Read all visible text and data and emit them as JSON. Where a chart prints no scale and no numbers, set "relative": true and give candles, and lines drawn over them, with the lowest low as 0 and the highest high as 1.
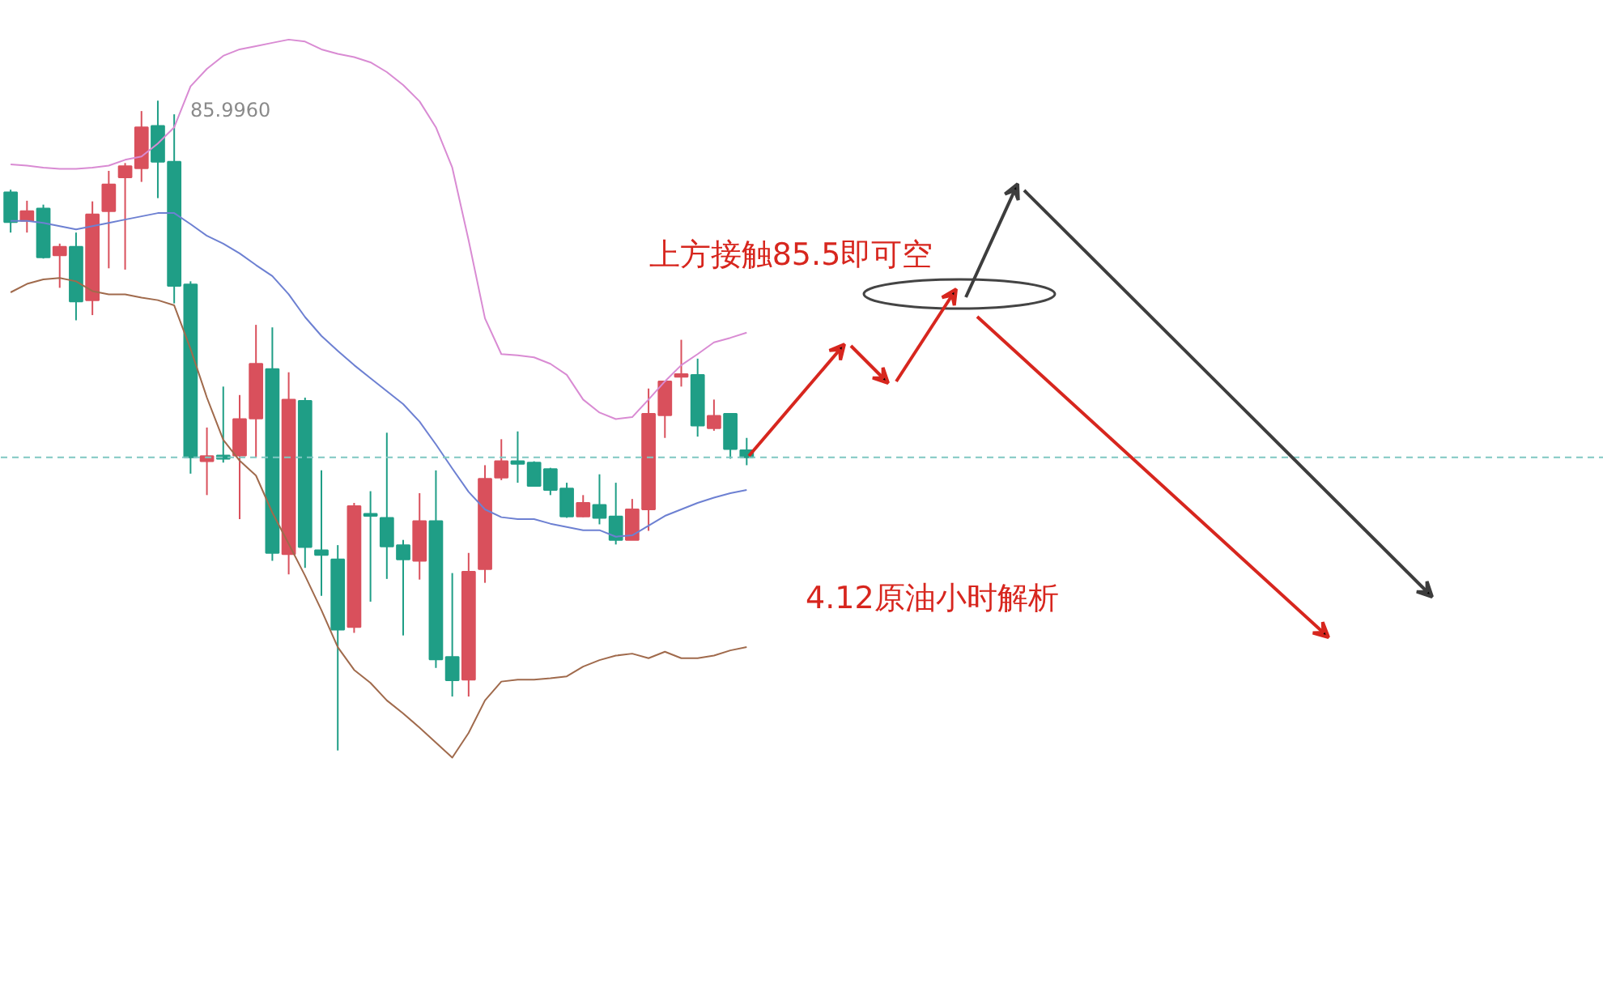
{
  "chart_data": {
    "type": "candlestick",
    "title": "4.12原油小时解析",
    "relative": true,
    "categories": [
      null,
      null,
      null,
      null,
      null,
      null,
      null,
      null,
      null,
      null,
      null,
      null,
      null,
      null,
      null,
      null,
      null,
      null,
      null,
      null,
      null,
      null,
      null,
      null,
      null,
      null,
      null,
      null,
      null,
      null,
      null,
      null,
      null,
      null,
      null,
      null,
      null,
      null,
      null,
      null,
      null,
      null,
      null,
      null,
      null,
      null,
      null,
      null,
      null,
      null,
      null,
      null,
      null,
      null,
      null,
      null,
      null,
      null,
      null,
      null,
      null,
      null,
      null,
      null,
      null,
      null,
      null,
      null,
      null,
      null,
      null,
      null,
      null,
      null,
      null,
      null,
      null,
      null,
      null,
      null,
      null,
      null,
      null,
      null,
      null,
      null,
      null,
      null,
      null,
      null,
      null,
      null,
      null,
      null,
      null,
      null,
      null,
      null
    ],
    "ohlc": [
      [
        0.859,
        0.863,
        0.797,
        0.813
      ],
      [
        0.815,
        0.846,
        0.797,
        0.83
      ],
      [
        0.834,
        0.84,
        0.757,
        0.759
      ],
      [
        0.762,
        0.78,
        0.712,
        0.775
      ],
      [
        0.775,
        0.797,
        0.662,
        0.691
      ],
      [
        0.693,
        0.845,
        0.67,
        0.825
      ],
      [
        0.83,
        0.892,
        0.742,
        0.871
      ],
      [
        0.882,
        0.904,
        0.74,
        0.899
      ],
      [
        0.896,
        0.984,
        0.875,
        0.959
      ],
      [
        0.961,
        1,
        0.85,
        0.906
      ],
      [
        0.906,
        0.979,
        0.688,
        0.715
      ],
      [
        0.717,
        0.722,
        0.426,
        0.451
      ],
      [
        0.445,
        0.497,
        0.393,
        0.453
      ],
      [
        0.454,
        0.56,
        0.443,
        0.449
      ],
      [
        0.454,
        0.547,
        0.356,
        0.51
      ],
      [
        0.511,
        0.655,
        0.451,
        0.595
      ],
      [
        0.587,
        0.651,
        0.292,
        0.304
      ],
      [
        0.302,
        0.582,
        0.271,
        0.54
      ],
      [
        0.538,
        0.543,
        0.281,
        0.313
      ],
      [
        0.308,
        0.431,
        0.238,
        0.301
      ],
      [
        0.294,
        0.316,
        0,
        0.186
      ],
      [
        0.19,
        0.381,
        0.181,
        0.376
      ],
      [
        0.364,
        0.399,
        0.229,
        0.361
      ],
      [
        0.358,
        0.489,
        0.264,
        0.314
      ],
      [
        0.316,
        0.324,
        0.177,
        0.294
      ],
      [
        0.292,
        0.396,
        0.263,
        0.353
      ],
      [
        0.353,
        0.431,
        0.127,
        0.14
      ],
      [
        0.144,
        0.273,
        0.083,
        0.108
      ],
      [
        0.109,
        0.304,
        0.083,
        0.275
      ],
      [
        0.279,
        0.439,
        0.258,
        0.418
      ],
      [
        0.42,
        0.479,
        0.416,
        0.445
      ],
      [
        0.445,
        0.491,
        0.412,
        0.441
      ],
      [
        0.443,
        0.445,
        0.406,
        0.407
      ],
      [
        0.433,
        0.435,
        0.393,
        0.401
      ],
      [
        0.403,
        0.412,
        0.358,
        0.36
      ],
      [
        0.36,
        0.393,
        0.359,
        0.381
      ],
      [
        0.378,
        0.425,
        0.348,
        0.358
      ],
      [
        0.36,
        0.412,
        0.317,
        0.324
      ],
      [
        0.324,
        0.387,
        0.324,
        0.371
      ],
      [
        0.371,
        0.557,
        0.338,
        0.518
      ],
      [
        0.516,
        0.568,
        0.481,
        0.568
      ],
      [
        0.575,
        0.632,
        0.56,
        0.579
      ],
      [
        0.578,
        0.603,
        0.483,
        0.5
      ],
      [
        0.496,
        0.54,
        0.492,
        0.515
      ],
      [
        0.518,
        0.518,
        0.449,
        0.464
      ],
      [
        0.462,
        0.481,
        0.439,
        0.451
      ],
      null,
      null,
      null,
      null,
      null,
      null,
      null,
      null,
      null,
      null,
      null,
      null,
      null,
      null,
      null,
      null,
      null,
      null,
      null,
      null,
      null,
      null,
      null,
      null,
      null,
      null,
      null,
      null,
      null,
      null,
      null,
      null,
      null,
      null,
      null,
      null,
      null,
      null,
      null,
      null,
      null,
      null,
      null,
      null,
      null,
      null,
      null,
      null,
      null,
      null,
      null,
      null
    ],
    "colors": [
      "#1f9e86",
      "#d9505c",
      "#1f9e86",
      "#d9505c",
      "#1f9e86",
      "#d9505c",
      "#d9505c",
      "#d9505c",
      "#d9505c",
      "#1f9e86",
      "#1f9e86",
      "#1f9e86",
      "#d9505c",
      "#1f9e86",
      "#d9505c",
      "#d9505c",
      "#1f9e86",
      "#d9505c",
      "#1f9e86",
      "#1f9e86",
      "#1f9e86",
      "#d9505c",
      "#1f9e86",
      "#1f9e86",
      "#1f9e86",
      "#d9505c",
      "#1f9e86",
      "#1f9e86",
      "#d9505c",
      "#d9505c",
      "#d9505c",
      "#1f9e86",
      "#1f9e86",
      "#1f9e86",
      "#1f9e86",
      "#d9505c",
      "#1f9e86",
      "#1f9e86",
      "#d9505c",
      "#d9505c",
      "#d9505c",
      "#d9505c",
      "#1f9e86",
      "#d9505c",
      "#1f9e86",
      "#1f9e86",
      null,
      null,
      null,
      null,
      null,
      null,
      null,
      null,
      null,
      null,
      null,
      null,
      null,
      null,
      null,
      null,
      null,
      null,
      null,
      null,
      null,
      null,
      null,
      null,
      null,
      null,
      null,
      null,
      null,
      null,
      null,
      null,
      null,
      null,
      null,
      null,
      null,
      null,
      null,
      null,
      null,
      null,
      null,
      null,
      null,
      null,
      null,
      null,
      null,
      null,
      null,
      null
    ],
    "series": [
      {
        "type": "line",
        "color": "#d98bd3",
        "values": [
          0.902,
          0.9,
          0.897,
          0.895,
          0.895,
          0.897,
          0.9,
          0.909,
          0.914,
          0.934,
          0.959,
          1.022,
          1.049,
          1.069,
          1.079,
          1.084,
          1.089,
          1.094,
          1.091,
          1.079,
          1.072,
          1.067,
          1.059,
          1.044,
          1.024,
          0.999,
          0.959,
          0.897,
          0.785,
          0.665,
          0.61,
          0.608,
          0.605,
          0.595,
          0.578,
          0.54,
          0.52,
          0.51,
          0.513,
          0.54,
          0.568,
          0.593,
          0.61,
          0.628,
          0.635,
          0.643,
          null,
          null,
          null,
          null,
          null,
          null,
          null,
          null,
          null,
          null,
          null,
          null,
          null,
          null,
          null,
          null,
          null,
          null,
          null,
          null,
          null,
          null,
          null,
          null,
          null,
          null,
          null,
          null,
          null,
          null,
          null,
          null,
          null,
          null,
          null,
          null,
          null,
          null,
          null,
          null,
          null,
          null,
          null,
          null,
          null,
          null,
          null,
          null,
          null,
          null,
          null,
          null
        ]
      },
      {
        "type": "line",
        "color": "#6d80d2",
        "values": [
          0.815,
          0.815,
          0.812,
          0.807,
          0.802,
          0.807,
          0.812,
          0.817,
          0.822,
          0.827,
          0.827,
          0.81,
          0.792,
          0.78,
          0.765,
          0.747,
          0.73,
          0.702,
          0.667,
          0.638,
          0.615,
          0.593,
          0.573,
          0.553,
          0.533,
          0.506,
          0.471,
          0.434,
          0.398,
          0.371,
          0.359,
          0.356,
          0.356,
          0.349,
          0.344,
          0.339,
          0.339,
          0.329,
          0.331,
          0.346,
          0.361,
          0.371,
          0.381,
          0.389,
          0.396,
          0.401,
          null,
          null,
          null,
          null,
          null,
          null,
          null,
          null,
          null,
          null,
          null,
          null,
          null,
          null,
          null,
          null,
          null,
          null,
          null,
          null,
          null,
          null,
          null,
          null,
          null,
          null,
          null,
          null,
          null,
          null,
          null,
          null,
          null,
          null,
          null,
          null,
          null,
          null,
          null,
          null,
          null,
          null,
          null,
          null,
          null,
          null,
          null,
          null,
          null,
          null,
          null,
          null
        ]
      },
      {
        "type": "line",
        "color": "#a06a4c",
        "values": [
          0.705,
          0.718,
          0.725,
          0.727,
          0.722,
          0.707,
          0.702,
          0.702,
          0.697,
          0.693,
          0.685,
          0.618,
          0.543,
          0.478,
          0.446,
          0.423,
          0.366,
          0.318,
          0.269,
          0.216,
          0.159,
          0.124,
          0.104,
          0.077,
          0.057,
          0.035,
          0.012,
          -0.011,
          0.027,
          0.077,
          0.106,
          0.109,
          0.109,
          0.111,
          0.114,
          0.129,
          0.139,
          0.146,
          0.149,
          0.142,
          0.152,
          0.142,
          0.142,
          0.146,
          0.154,
          0.159,
          null,
          null,
          null,
          null,
          null,
          null,
          null,
          null,
          null,
          null,
          null,
          null,
          null,
          null,
          null,
          null,
          null,
          null,
          null,
          null,
          null,
          null,
          null,
          null,
          null,
          null,
          null,
          null,
          null,
          null,
          null,
          null,
          null,
          null,
          null,
          null,
          null,
          null,
          null,
          null,
          null,
          null,
          null,
          null,
          null,
          null,
          null,
          null,
          null,
          null,
          null,
          null
        ]
      }
    ],
    "ref_lines": [
      {
        "axis": "y",
        "value": 0.451,
        "color": "#7fc8c2",
        "line_style": "dashed"
      }
    ],
    "annotations": [
      "85.9960",
      "上方接触85.5即可空"
    ]
  }
}
